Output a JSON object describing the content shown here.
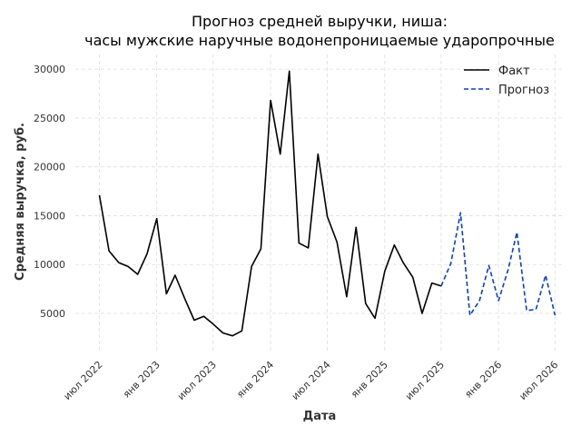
{
  "chart_data": {
    "type": "line",
    "title_line1": "Прогноз средней выручки, ниша:",
    "title_line2": "часы мужские наручные водонепроницаемые ударопрочные",
    "xlabel": "Дата",
    "ylabel": "Средняя выручка, руб.",
    "ylim": [
      1000,
      31500
    ],
    "yticks": [
      5000,
      10000,
      15000,
      20000,
      25000,
      30000
    ],
    "xlim": [
      "2022-04-15",
      "2026-08-01"
    ],
    "xticks": [
      {
        "date": "2022-07-01",
        "label": "июл 2022"
      },
      {
        "date": "2023-01-01",
        "label": "янв 2023"
      },
      {
        "date": "2023-07-01",
        "label": "июл 2023"
      },
      {
        "date": "2024-01-01",
        "label": "янв 2024"
      },
      {
        "date": "2024-07-01",
        "label": "июл 2024"
      },
      {
        "date": "2025-01-01",
        "label": "янв 2025"
      },
      {
        "date": "2025-07-01",
        "label": "июл 2025"
      },
      {
        "date": "2026-01-01",
        "label": "янв 2026"
      },
      {
        "date": "2026-07-01",
        "label": "июл 2026"
      }
    ],
    "grid": true,
    "legend_position": "top-right",
    "series": [
      {
        "name": "Факт",
        "color": "#000000",
        "style": "solid",
        "x": [
          "2022-07-01",
          "2022-08-01",
          "2022-09-01",
          "2022-10-01",
          "2022-11-01",
          "2022-12-01",
          "2023-01-01",
          "2023-02-01",
          "2023-03-01",
          "2023-04-01",
          "2023-05-01",
          "2023-06-01",
          "2023-07-01",
          "2023-08-01",
          "2023-09-01",
          "2023-10-01",
          "2023-11-01",
          "2023-12-01",
          "2024-01-01",
          "2024-02-01",
          "2024-03-01",
          "2024-04-01",
          "2024-05-01",
          "2024-06-01",
          "2024-07-01",
          "2024-08-01",
          "2024-09-01",
          "2024-10-01",
          "2024-11-01",
          "2024-12-01",
          "2025-01-01",
          "2025-02-01",
          "2025-03-01",
          "2025-04-01",
          "2025-05-01",
          "2025-06-01",
          "2025-07-01"
        ],
        "y": [
          17100,
          11400,
          10200,
          9800,
          9000,
          11100,
          14700,
          7000,
          8900,
          6500,
          4300,
          4700,
          3900,
          3000,
          2700,
          3200,
          9800,
          11600,
          26800,
          21300,
          29800,
          12200,
          11700,
          21300,
          14900,
          12300,
          6700,
          13800,
          6000,
          4500,
          9300,
          12000,
          10200,
          8700,
          5000,
          8100,
          7800
        ]
      },
      {
        "name": "Прогноз",
        "color": "#0a3fc9",
        "style": "dashed",
        "x": [
          "2025-07-01",
          "2025-08-01",
          "2025-09-01",
          "2025-10-01",
          "2025-11-01",
          "2025-12-01",
          "2026-01-01",
          "2026-02-01",
          "2026-03-01",
          "2026-04-01",
          "2026-05-01",
          "2026-06-01",
          "2026-07-01"
        ],
        "y": [
          7800,
          10100,
          15300,
          4800,
          6300,
          9900,
          6300,
          9500,
          13300,
          5300,
          5400,
          8900,
          4800
        ]
      }
    ]
  }
}
